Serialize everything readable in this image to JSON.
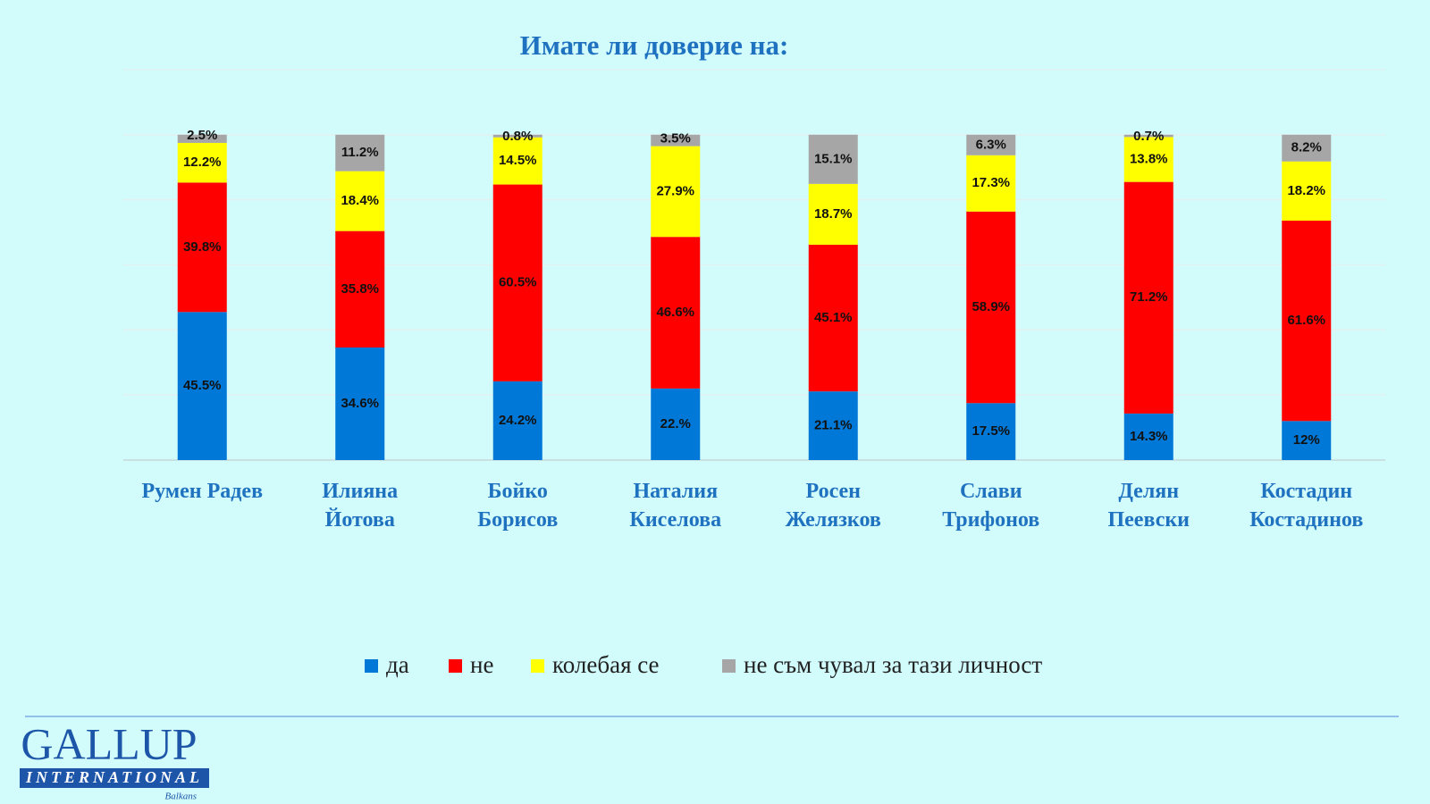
{
  "chart_data": {
    "type": "stacked_bar",
    "title": "Имате  ли доверие на:",
    "categories": [
      "Румен Радев",
      "Илияна\nЙотова",
      "Бойко\nБорисов",
      "Наталия\nКиселова",
      "Росен\nЖелязков",
      "Слави\nТрифонов",
      "Делян\nПеевски",
      "Костадин\nКостадинов"
    ],
    "series": [
      {
        "name": "да",
        "color": "#0078d7",
        "values": [
          45.5,
          34.6,
          24.2,
          22,
          21.1,
          17.5,
          14.3,
          12
        ],
        "value_labels": [
          "45.5%",
          "34.6%",
          "24.2%",
          "22.%",
          "21.1%",
          "17.5%",
          "14.3%",
          "12%"
        ]
      },
      {
        "name": "не",
        "color": "#ff0000",
        "values": [
          39.8,
          35.8,
          60.5,
          46.6,
          45.1,
          58.9,
          71.2,
          61.6
        ],
        "value_labels": [
          "39.8%",
          "35.8%",
          "60.5%",
          "46.6%",
          "45.1%",
          "58.9%",
          "71.2%",
          "61.6%"
        ]
      },
      {
        "name": "колебая се",
        "color": "#ffff00",
        "values": [
          12.2,
          18.4,
          14.5,
          27.9,
          18.7,
          17.3,
          13.8,
          18.2
        ],
        "value_labels": [
          "12.2%",
          "18.4%",
          "14.5%",
          "27.9%",
          "18.7%",
          "17.3%",
          "13.8%",
          "18.2%"
        ]
      },
      {
        "name": "не съм чувал за тази личност",
        "color": "#a6a6a6",
        "values": [
          2.5,
          11.2,
          0.8,
          3.5,
          15.1,
          6.3,
          0.7,
          8.2
        ],
        "value_labels": [
          "2.5%",
          "11.2%",
          "0.8%",
          "3.5%",
          "15.1%",
          "6.3%",
          "0.7%",
          "8.2%"
        ]
      }
    ],
    "ylim": [
      0,
      120
    ],
    "yticks": [
      0,
      20,
      40,
      60,
      80,
      100,
      120
    ],
    "grid": true
  },
  "logo": {
    "brand": "GALLUP",
    "line2": "INTERNATIONAL",
    "line3": "Balkans"
  }
}
